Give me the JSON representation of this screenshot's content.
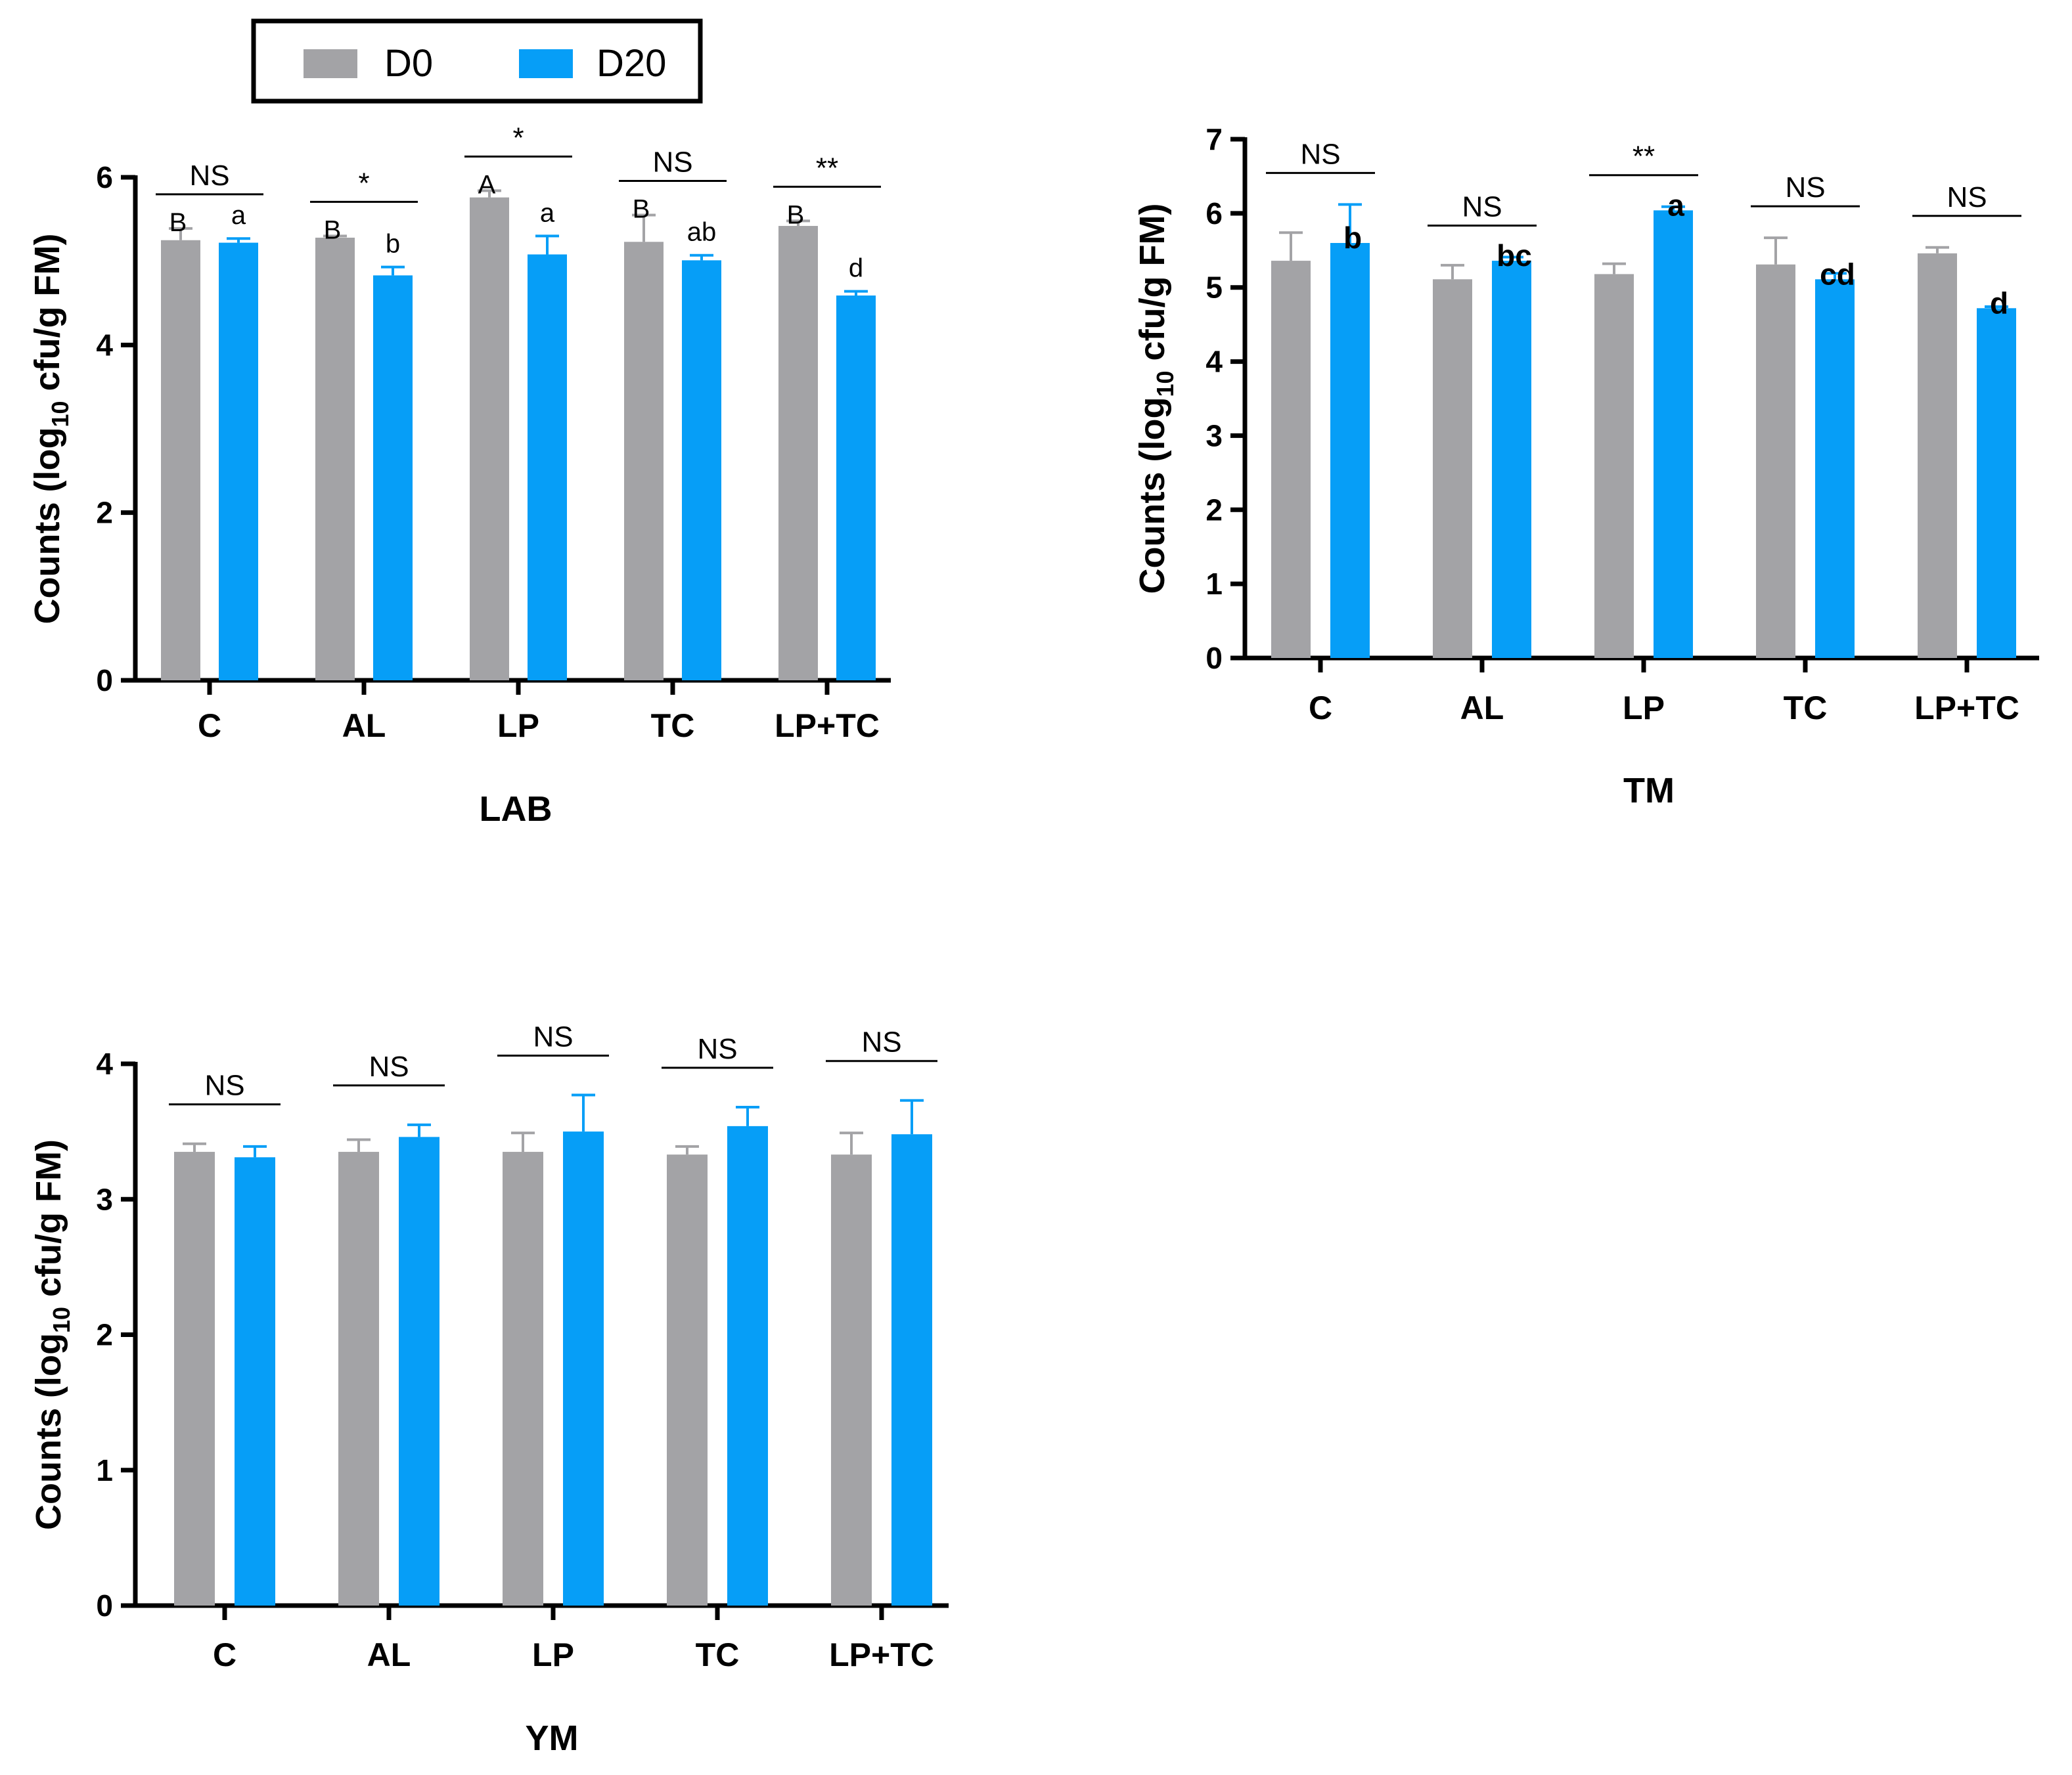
{
  "legend": {
    "items": [
      {
        "label": "D0",
        "color": "#a3a3a6"
      },
      {
        "label": "D20",
        "color": "#069ef7"
      }
    ]
  },
  "colors": {
    "D0": "#a3a3a6",
    "D20": "#069ef7",
    "error_D0": "#a3a3a6",
    "error_D20": "#069ef7"
  },
  "chart_data": [
    {
      "type": "bar",
      "title": "LAB",
      "ylabel": "Counts (log10 cfu/g FM)",
      "ylabel_main": "Counts (log",
      "ylabel_sub": "10",
      "ylabel_tail": " cfu/g FM)",
      "ylim": [
        0,
        6
      ],
      "yticks": [
        0,
        2,
        4,
        6
      ],
      "categories": [
        "C",
        "AL",
        "LP",
        "TC",
        "LP+TC"
      ],
      "series": [
        {
          "name": "D0",
          "values": [
            5.25,
            5.28,
            5.76,
            5.23,
            5.42
          ],
          "errors": [
            0.14,
            0.02,
            0.08,
            0.32,
            0.06
          ]
        },
        {
          "name": "D20",
          "values": [
            5.22,
            4.83,
            5.08,
            5.01,
            4.59
          ],
          "errors": [
            0.05,
            0.1,
            0.22,
            0.06,
            0.05
          ]
        }
      ],
      "letters_D0": [
        "B",
        "B",
        "A",
        "B",
        "B"
      ],
      "letters_D20": [
        "a",
        "b",
        "a",
        "ab",
        "d"
      ],
      "letters_bold": false,
      "significance": [
        "NS",
        "*",
        "*",
        "NS",
        "**"
      ]
    },
    {
      "type": "bar",
      "title": "TM",
      "ylabel": "Counts (log10 cfu/g FM)",
      "ylabel_main": "Counts (log",
      "ylabel_sub": "10",
      "ylabel_tail": " cfu/g FM)",
      "ylim": [
        0,
        7
      ],
      "yticks": [
        0,
        1,
        2,
        3,
        4,
        5,
        6,
        7
      ],
      "categories": [
        "C",
        "AL",
        "LP",
        "TC",
        "LP+TC"
      ],
      "series": [
        {
          "name": "D0",
          "values": [
            5.36,
            5.11,
            5.18,
            5.31,
            5.46
          ],
          "errors": [
            0.38,
            0.19,
            0.14,
            0.36,
            0.08
          ]
        },
        {
          "name": "D20",
          "values": [
            5.6,
            5.36,
            6.04,
            5.11,
            4.72
          ],
          "errors": [
            0.52,
            0.05,
            0.05,
            0.08,
            0.02
          ]
        }
      ],
      "letters_D0": [
        "",
        "",
        "",
        "",
        ""
      ],
      "letters_D20": [
        "b",
        "bc",
        "a",
        "cd",
        "d"
      ],
      "letters_bold": true,
      "significance": [
        "NS",
        "NS",
        "**",
        "NS",
        "NS"
      ]
    },
    {
      "type": "bar",
      "title": "YM",
      "ylabel": "Counts (log10 cfu/g FM)",
      "ylabel_main": "Counts (log",
      "ylabel_sub": "10",
      "ylabel_tail": " cfu/g FM)",
      "ylim": [
        0,
        4
      ],
      "yticks": [
        0,
        1,
        2,
        3,
        4
      ],
      "categories": [
        "C",
        "AL",
        "LP",
        "TC",
        "LP+TC"
      ],
      "series": [
        {
          "name": "D0",
          "values": [
            3.35,
            3.35,
            3.35,
            3.33,
            3.33
          ],
          "errors": [
            0.06,
            0.09,
            0.14,
            0.06,
            0.16
          ]
        },
        {
          "name": "D20",
          "values": [
            3.31,
            3.46,
            3.5,
            3.54,
            3.48
          ],
          "errors": [
            0.08,
            0.09,
            0.27,
            0.14,
            0.25
          ]
        }
      ],
      "letters_D0": [
        "",
        "",
        "",
        "",
        ""
      ],
      "letters_D20": [
        "",
        "",
        "",
        "",
        ""
      ],
      "letters_bold": false,
      "significance": [
        "NS",
        "NS",
        "NS",
        "NS",
        "NS"
      ]
    }
  ]
}
